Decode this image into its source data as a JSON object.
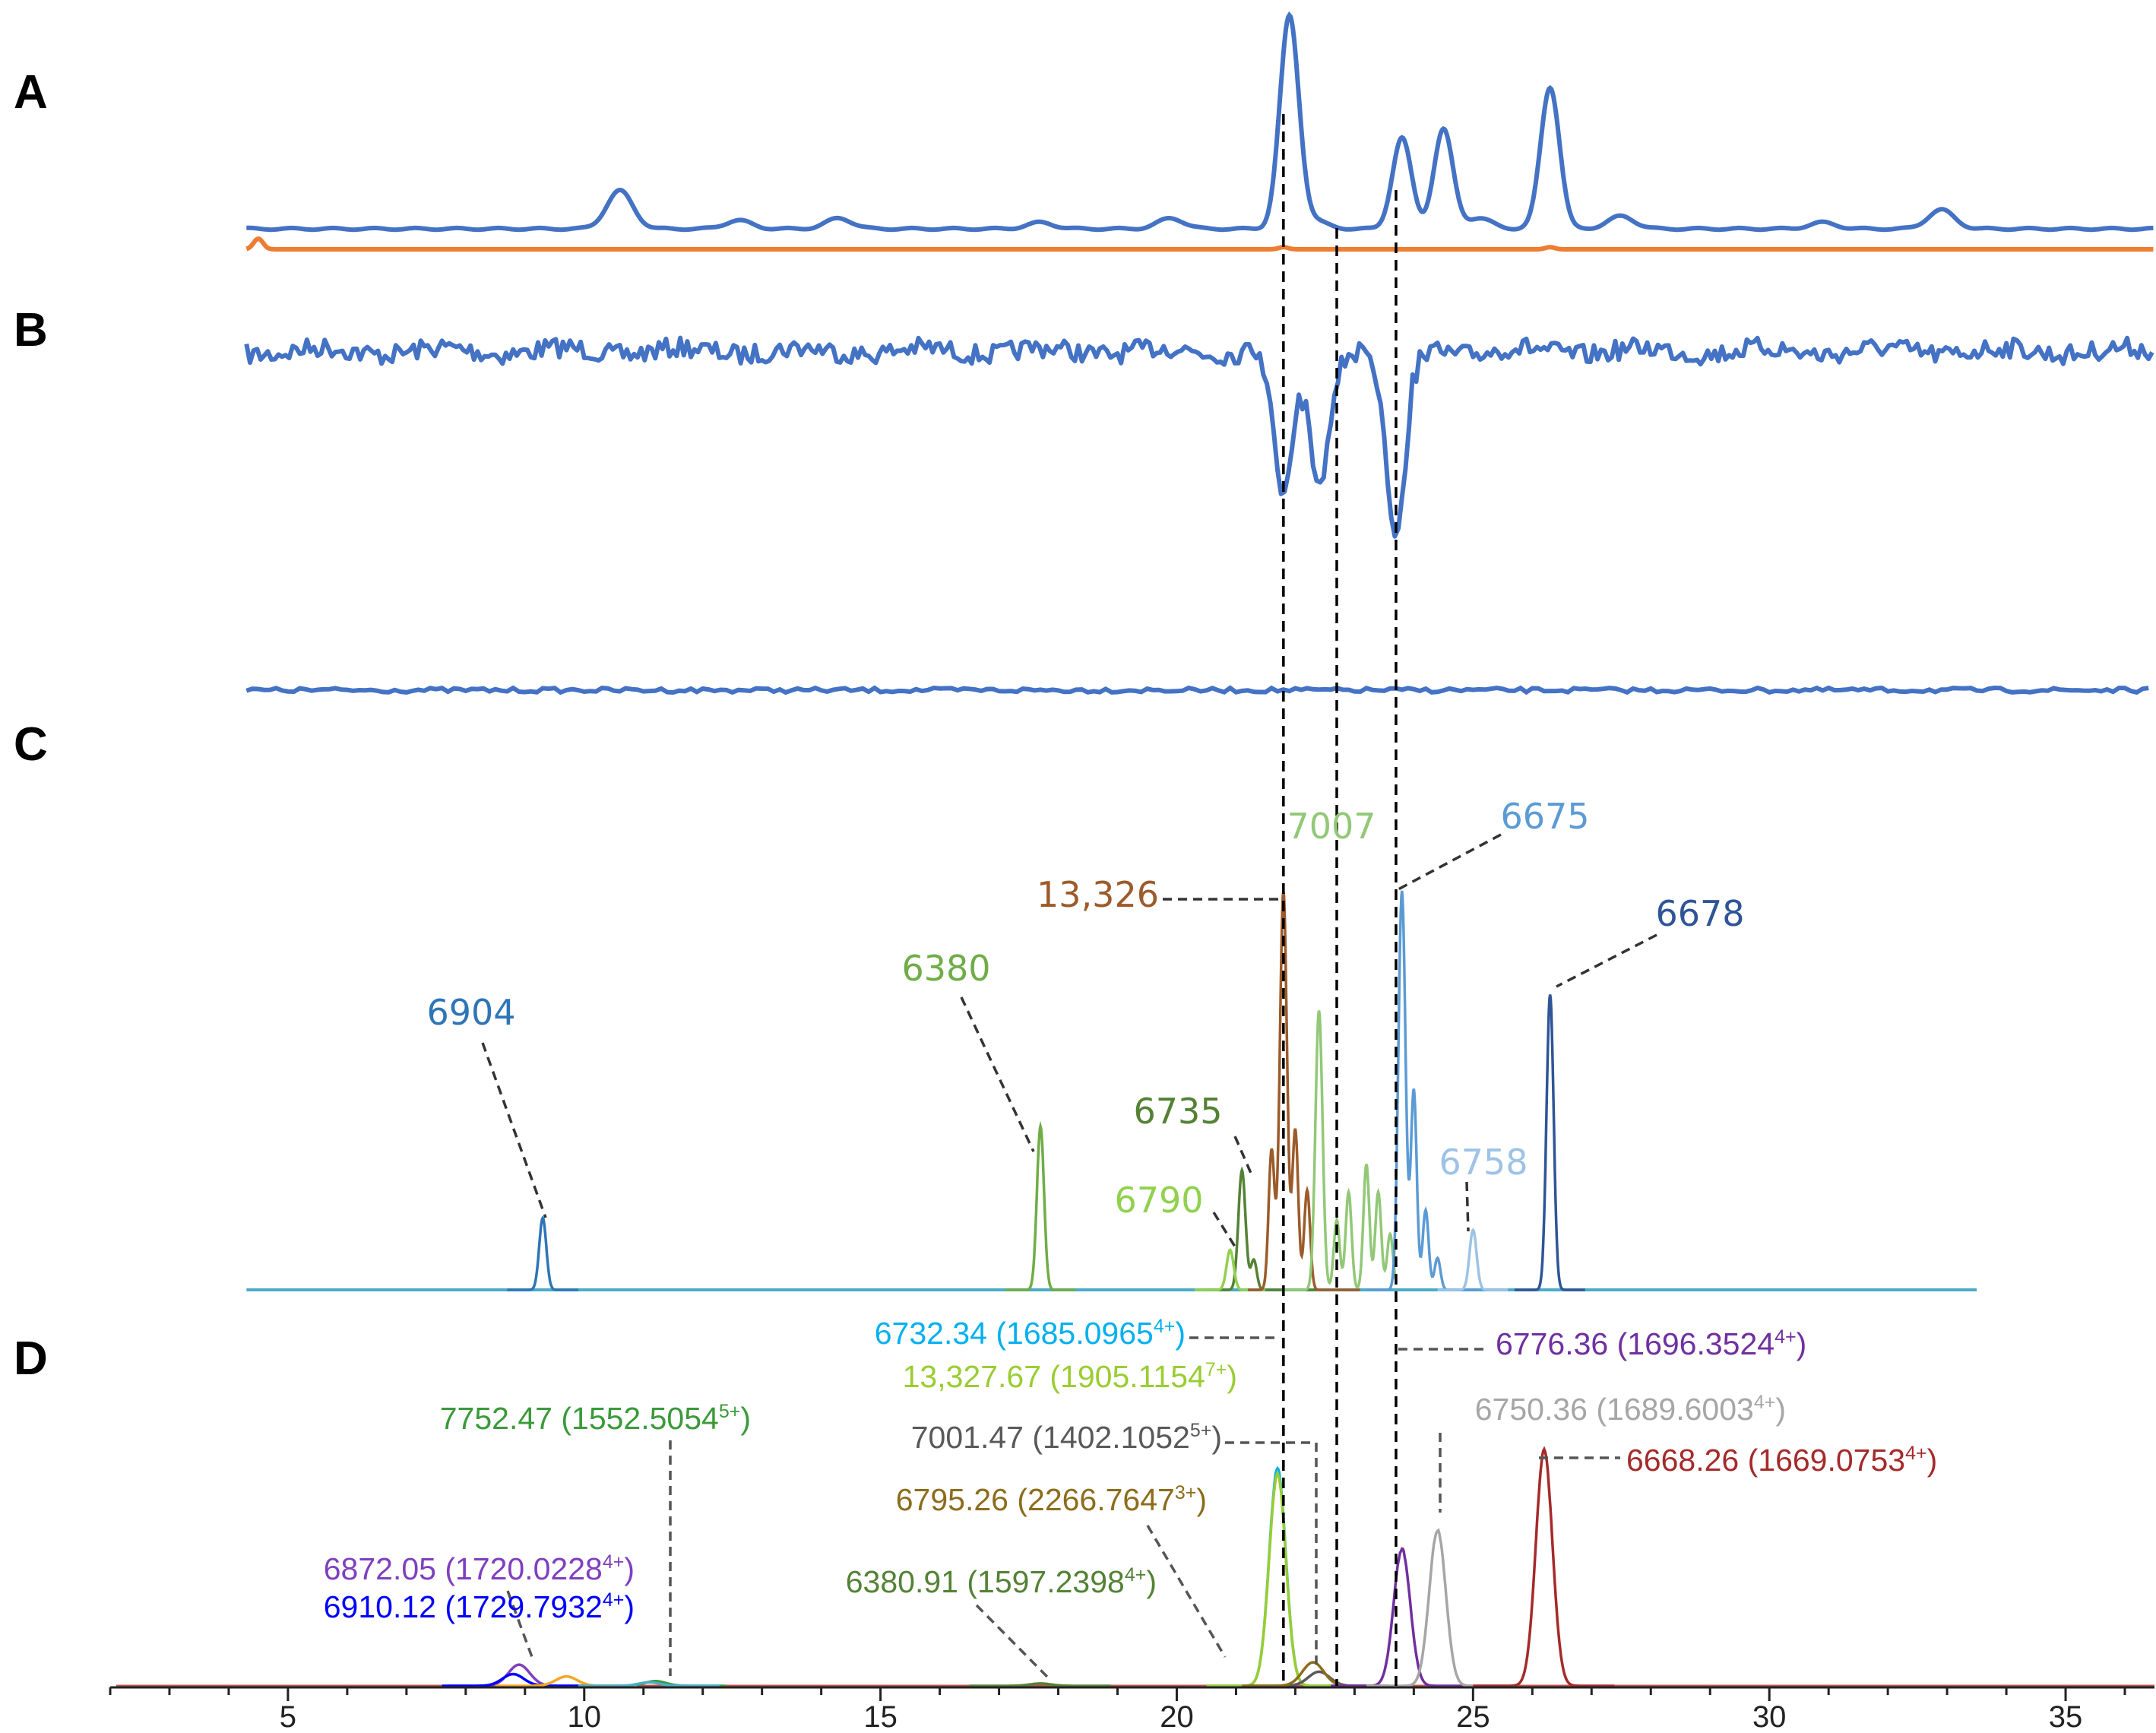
{
  "panels": [
    "A",
    "B",
    "C",
    "D"
  ],
  "chart_data": {
    "type": "line",
    "x_axis": {
      "range": [
        2,
        36.5
      ],
      "ticks": [
        5,
        10,
        15,
        20,
        25,
        30,
        35
      ],
      "minor_step": 1
    },
    "panel_A": {
      "series": [
        {
          "color": "#4472c4",
          "peaks": [
            [
              2.6,
              0.02
            ],
            [
              3.7,
              0.04
            ],
            [
              10.6,
              0.18
            ],
            [
              12.6,
              0.04
            ],
            [
              14.3,
              0.05
            ],
            [
              17.7,
              0.03
            ],
            [
              19.9,
              0.05
            ],
            [
              21.9,
              1.0
            ],
            [
              22.3,
              0.04
            ],
            [
              23.8,
              0.43
            ],
            [
              24.5,
              0.47
            ],
            [
              25.1,
              0.05
            ],
            [
              26.3,
              0.67
            ],
            [
              27.5,
              0.06
            ],
            [
              30.9,
              0.03
            ],
            [
              32.9,
              0.09
            ]
          ]
        },
        {
          "color": "#ed7d31",
          "peaks": [
            [
              4.5,
              0.05
            ],
            [
              21.8,
              0.01
            ],
            [
              26.3,
              0.01
            ]
          ]
        }
      ]
    },
    "panel_B": {
      "series": [
        {
          "color": "#4472c4",
          "dips": [
            [
              21.8,
              1.0
            ],
            [
              22.4,
              0.95
            ],
            [
              23.7,
              1.3
            ]
          ]
        },
        {
          "color": "#4472c4",
          "note_flat": true
        }
      ]
    },
    "panel_C": {
      "peaks": [
        {
          "label": "6904",
          "x": 9.3,
          "height": 0.18,
          "color": "#2e75b6"
        },
        {
          "label": "6380",
          "x": 17.7,
          "height": 0.41,
          "color": "#70ad47"
        },
        {
          "label": "6735",
          "x": 21.1,
          "height": 0.3,
          "color": "#548235"
        },
        {
          "label": "6790",
          "x": 20.9,
          "height": 0.1,
          "color": "#92d050"
        },
        {
          "label": "13,326",
          "x": 21.8,
          "height": 1.0,
          "color": "#9c5b2a"
        },
        {
          "label": "7007",
          "x": 22.4,
          "height": 0.7,
          "color": "#92c878"
        },
        {
          "label": "6675",
          "x": 23.8,
          "height": 1.0,
          "color": "#5b9bd5"
        },
        {
          "label": "6758",
          "x": 25.0,
          "height": 0.15,
          "color": "#9dc3e6"
        },
        {
          "label": "6678",
          "x": 26.3,
          "height": 0.74,
          "color": "#2f5597"
        }
      ]
    },
    "panel_D": {
      "peaks": [
        {
          "mass": "6732.34",
          "mz": "1685.0965",
          "charge": "4+",
          "x": 21.7,
          "height": 0.92,
          "color": "#00b0f0"
        },
        {
          "mass": "13,327.67",
          "mz": "1905.1154",
          "charge": "7+",
          "x": 21.7,
          "height": 0.9,
          "color": "#9acd32"
        },
        {
          "mass": "7001.47",
          "mz": "1402.1052",
          "charge": "5+",
          "x": 22.4,
          "height": 0.06,
          "color": "#595959"
        },
        {
          "mass": "6795.26",
          "mz": "2266.7647",
          "charge": "3+",
          "x": 22.3,
          "height": 0.1,
          "color": "#8b6d1b"
        },
        {
          "mass": "6380.91",
          "mz": "1597.2398",
          "charge": "4+",
          "x": 17.7,
          "height": 0.01,
          "color": "#548235"
        },
        {
          "mass": "7752.47",
          "mz": "1552.5054",
          "charge": "5+",
          "x": 11.2,
          "height": 0.02,
          "color": "#3a9a3a"
        },
        {
          "mass": "6872.05",
          "mz": "1720.0228",
          "charge": "4+",
          "x": 8.9,
          "height": 0.09,
          "color": "#7f3fbf"
        },
        {
          "mass": "6910.12",
          "mz": "1729.7932",
          "charge": "4+",
          "x": 8.8,
          "height": 0.05,
          "color": "#0000ff"
        },
        {
          "mass": "6776.36",
          "mz": "1696.3524",
          "charge": "4+",
          "x": 23.8,
          "height": 0.58,
          "color": "#7030a0"
        },
        {
          "mass": "6750.36",
          "mz": "1689.6003",
          "charge": "4+",
          "x": 24.4,
          "height": 0.66,
          "color": "#a6a6a6"
        },
        {
          "mass": "6668.26",
          "mz": "1669.0753",
          "charge": "4+",
          "x": 26.2,
          "height": 1.0,
          "color": "#a52a2a"
        }
      ],
      "extra_small_peaks": [
        {
          "x": 9.7,
          "height": 0.04,
          "color": "#f5a623"
        },
        {
          "x": 11.1,
          "height": 0.015,
          "color": "#4bacc6"
        }
      ]
    },
    "reference_lines_x": [
      21.8,
      22.7,
      23.7
    ]
  }
}
